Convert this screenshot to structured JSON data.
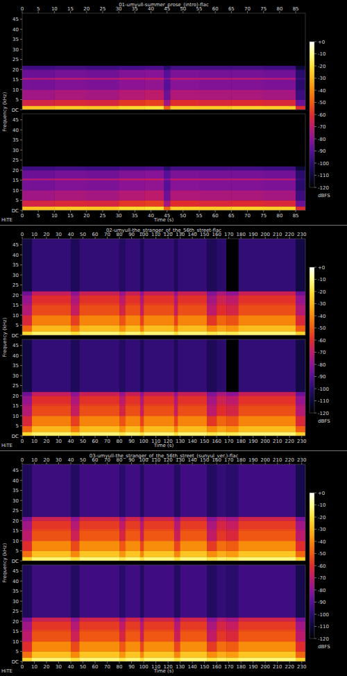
{
  "chart_data": [
    {
      "type": "heatmap",
      "title": "01-umyull-summer_prose_(intro)-flac",
      "x_label": "Time (s)",
      "y_label": "Frequency (kHz)",
      "watermark": "HiTE",
      "xlim": [
        0,
        88
      ],
      "xticks": [
        0,
        5,
        10,
        15,
        20,
        25,
        30,
        35,
        40,
        45,
        50,
        55,
        60,
        65,
        70,
        75,
        80,
        85
      ],
      "ylim": [
        0,
        48
      ],
      "yticks": [
        {
          "value": 0,
          "label": "DC"
        },
        5,
        10,
        15,
        20,
        25,
        30,
        35,
        40,
        45
      ],
      "grid": false,
      "time_bins": [
        0,
        10,
        20,
        30,
        38,
        44,
        46,
        55,
        65,
        75,
        85,
        88
      ],
      "freq_bins": [
        0,
        2,
        5,
        10,
        15,
        16,
        20,
        22,
        48
      ],
      "cells": [
        [
          -28,
          -64,
          -76,
          -84,
          -74,
          -86,
          -95,
          -120
        ],
        [
          -26,
          -62,
          -74,
          -82,
          -72,
          -84,
          -94,
          -120
        ],
        [
          -27,
          -63,
          -75,
          -83,
          -73,
          -85,
          -95,
          -120
        ],
        [
          -22,
          -58,
          -72,
          -80,
          -70,
          -82,
          -93,
          -120
        ],
        [
          -20,
          -56,
          -70,
          -79,
          -69,
          -81,
          -92,
          -120
        ],
        [
          -48,
          -76,
          -86,
          -90,
          -82,
          -90,
          -100,
          -120
        ],
        [
          -25,
          -60,
          -73,
          -81,
          -71,
          -83,
          -94,
          -120
        ],
        [
          -26,
          -62,
          -74,
          -82,
          -72,
          -84,
          -94,
          -120
        ],
        [
          -24,
          -61,
          -74,
          -82,
          -72,
          -84,
          -94,
          -120
        ],
        [
          -25,
          -62,
          -75,
          -83,
          -73,
          -85,
          -95,
          -120
        ],
        [
          -60,
          -86,
          -96,
          -100,
          -96,
          -100,
          -110,
          -120
        ]
      ],
      "colorbar": {
        "range": [
          -120,
          0
        ],
        "ticks": [
          {
            "value": 0,
            "label": "+0"
          },
          -10,
          -20,
          -30,
          -40,
          -50,
          -60,
          -70,
          -80,
          -90,
          -100,
          -110,
          -120
        ],
        "label": "dBFS"
      }
    },
    {
      "type": "heatmap",
      "title": "02-umyull-the_stranger_of_the_56th_street-flac",
      "x_label": "Time (s)",
      "y_label": "Frequency (kHz)",
      "watermark": "HiTE",
      "xlim": [
        0,
        233
      ],
      "xticks": [
        0,
        10,
        20,
        30,
        40,
        50,
        60,
        70,
        80,
        90,
        100,
        110,
        120,
        130,
        140,
        150,
        160,
        170,
        180,
        190,
        200,
        210,
        220,
        230
      ],
      "ylim": [
        0,
        48
      ],
      "yticks": [
        {
          "value": 0,
          "label": "DC"
        },
        5,
        10,
        15,
        20,
        25,
        30,
        35,
        40,
        45
      ],
      "grid": false,
      "time_bins": [
        0,
        8,
        40,
        47,
        80,
        85,
        97,
        100,
        125,
        128,
        152,
        160,
        168,
        178,
        225,
        233
      ],
      "freq_bins": [
        0,
        2,
        5,
        10,
        15,
        16,
        20,
        22,
        48
      ],
      "cells": [
        [
          -22,
          -48,
          -62,
          -72,
          -75,
          -78,
          -86,
          -108
        ],
        [
          -14,
          -30,
          -42,
          -54,
          -57,
          -60,
          -68,
          -98
        ],
        [
          -20,
          -42,
          -56,
          -68,
          -70,
          -73,
          -80,
          -104
        ],
        [
          -13,
          -29,
          -41,
          -53,
          -56,
          -59,
          -67,
          -98
        ],
        [
          -18,
          -38,
          -52,
          -64,
          -67,
          -70,
          -78,
          -102
        ],
        [
          -13,
          -29,
          -41,
          -53,
          -56,
          -59,
          -67,
          -98
        ],
        [
          -20,
          -42,
          -56,
          -68,
          -70,
          -73,
          -80,
          -104
        ],
        [
          -13,
          -29,
          -41,
          -53,
          -56,
          -59,
          -67,
          -98
        ],
        [
          -20,
          -42,
          -56,
          -68,
          -70,
          -73,
          -80,
          -104
        ],
        [
          -13,
          -29,
          -41,
          -53,
          -56,
          -59,
          -67,
          -98
        ],
        [
          -18,
          -40,
          -58,
          -70,
          -72,
          -75,
          -82,
          -104
        ],
        [
          -15,
          -34,
          -48,
          -60,
          -63,
          -66,
          -74,
          -100
        ],
        [
          -17,
          -38,
          -52,
          -64,
          -67,
          -70,
          -80,
          -120
        ],
        [
          -13,
          -29,
          -41,
          -53,
          -56,
          -59,
          -67,
          -98
        ],
        [
          -24,
          -50,
          -62,
          -72,
          -75,
          -78,
          -86,
          -108
        ]
      ],
      "colorbar": {
        "range": [
          -120,
          0
        ],
        "ticks": [
          {
            "value": 0,
            "label": "+0"
          },
          -10,
          -20,
          -30,
          -40,
          -50,
          -60,
          -70,
          -80,
          -90,
          -100,
          -110,
          -120
        ],
        "label": "dBFS"
      }
    },
    {
      "type": "heatmap",
      "title": "03-umyull-the_stranger_of_the_56th_street_(sunyul_ver.)-flac",
      "x_label": "Time (s)",
      "y_label": "Frequency (kHz)",
      "watermark": "HiTE",
      "xlim": [
        0,
        233
      ],
      "xticks": [
        0,
        10,
        20,
        30,
        40,
        50,
        60,
        70,
        80,
        90,
        100,
        110,
        120,
        130,
        140,
        150,
        160,
        170,
        180,
        190,
        200,
        210,
        220,
        230
      ],
      "ylim": [
        0,
        48
      ],
      "yticks": [
        {
          "value": 0,
          "label": "DC"
        },
        5,
        10,
        15,
        20,
        25,
        30,
        35,
        40,
        45
      ],
      "grid": false,
      "time_bins": [
        0,
        8,
        40,
        47,
        80,
        85,
        97,
        100,
        125,
        130,
        152,
        160,
        168,
        178,
        225,
        233
      ],
      "freq_bins": [
        0,
        2,
        5,
        10,
        15,
        16,
        20,
        22,
        48
      ],
      "cells": [
        [
          -22,
          -46,
          -60,
          -70,
          -73,
          -76,
          -84,
          -104
        ],
        [
          -13,
          -28,
          -40,
          -52,
          -55,
          -58,
          -66,
          -96
        ],
        [
          -19,
          -40,
          -54,
          -66,
          -69,
          -72,
          -79,
          -102
        ],
        [
          -12,
          -27,
          -39,
          -51,
          -54,
          -57,
          -65,
          -95
        ],
        [
          -17,
          -37,
          -51,
          -63,
          -66,
          -69,
          -77,
          -100
        ],
        [
          -12,
          -27,
          -39,
          -51,
          -54,
          -57,
          -65,
          -95
        ],
        [
          -19,
          -41,
          -55,
          -67,
          -69,
          -72,
          -79,
          -102
        ],
        [
          -12,
          -27,
          -39,
          -51,
          -54,
          -57,
          -65,
          -95
        ],
        [
          -19,
          -41,
          -55,
          -67,
          -69,
          -72,
          -79,
          -102
        ],
        [
          -12,
          -27,
          -39,
          -51,
          -54,
          -57,
          -65,
          -95
        ],
        [
          -18,
          -39,
          -57,
          -69,
          -71,
          -74,
          -81,
          -102
        ],
        [
          -14,
          -32,
          -46,
          -58,
          -61,
          -64,
          -72,
          -98
        ],
        [
          -16,
          -36,
          -50,
          -62,
          -65,
          -68,
          -76,
          -100
        ],
        [
          -12,
          -27,
          -39,
          -51,
          -54,
          -57,
          -65,
          -95
        ],
        [
          -23,
          -48,
          -60,
          -70,
          -73,
          -76,
          -84,
          -106
        ]
      ],
      "colorbar": {
        "range": [
          -120,
          0
        ],
        "ticks": [
          {
            "value": 0,
            "label": "+0"
          },
          -10,
          -20,
          -30,
          -40,
          -50,
          -60,
          -70,
          -80,
          -90,
          -100,
          -110,
          -120
        ],
        "label": "dBFS"
      }
    }
  ]
}
